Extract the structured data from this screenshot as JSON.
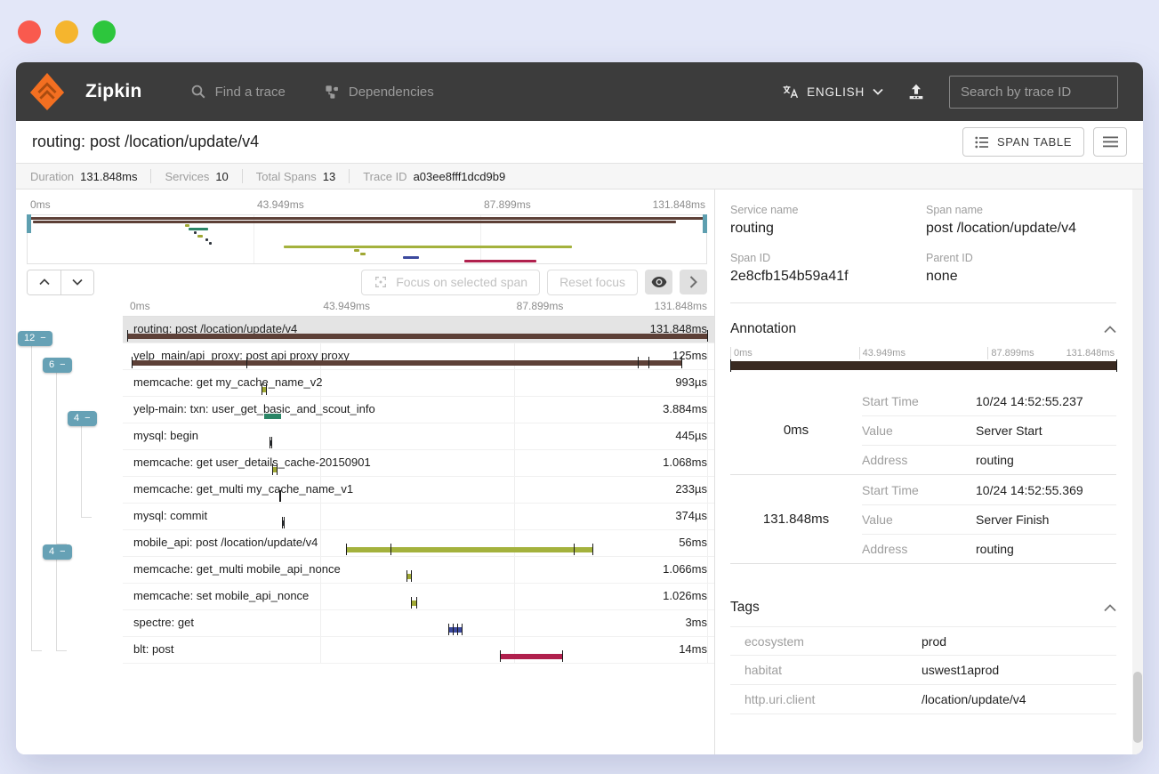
{
  "window_chrome": {
    "traffic_lights": [
      "#f95a4e",
      "#f5b52e",
      "#2dc63d"
    ]
  },
  "header": {
    "brand": "Zipkin",
    "nav": [
      {
        "label": "Find a trace"
      },
      {
        "label": "Dependencies"
      }
    ],
    "language": "ENGLISH",
    "search_placeholder": "Search by trace ID",
    "bg_color": "#3c3c3c"
  },
  "title_bar": {
    "title": "routing: post /location/update/v4",
    "span_table_label": "SPAN TABLE"
  },
  "stats": [
    {
      "label": "Duration",
      "value": "131.848ms"
    },
    {
      "label": "Services",
      "value": "10"
    },
    {
      "label": "Total Spans",
      "value": "13"
    },
    {
      "label": "Trace ID",
      "value": "a03ee8fff1dcd9b9"
    }
  ],
  "timeline": {
    "ticks": [
      "0ms",
      "43.949ms",
      "87.899ms",
      "131.848ms"
    ],
    "total_ms": 131.848,
    "controls": {
      "focus_label": "Focus on selected span",
      "reset_label": "Reset focus"
    },
    "spans": [
      {
        "label": "routing: post /location/update/v4",
        "duration": "131.848ms",
        "start_ms": 0,
        "duration_ms": 131.848,
        "color": "#5d4037",
        "selected": true,
        "ticks_ms": [
          0,
          131.848
        ]
      },
      {
        "label": "yelp_main/api_proxy: post api proxy proxy",
        "duration": "125ms",
        "start_ms": 1,
        "duration_ms": 125,
        "color": "#5d4037",
        "selected": false,
        "ticks_ms": [
          1,
          27,
          116,
          118.5,
          126
        ]
      },
      {
        "label": "memcache: get my_cache_name_v2",
        "duration": "993µs",
        "start_ms": 30.5,
        "duration_ms": 0.993,
        "color": "#a0a834",
        "selected": false,
        "ticks_ms": [
          30.5,
          31.49
        ]
      },
      {
        "label": "yelp-main: txn: user_get_basic_and_scout_info",
        "duration": "3.884ms",
        "start_ms": 31.2,
        "duration_ms": 3.884,
        "color": "#2b8566",
        "selected": false,
        "ticks_ms": []
      },
      {
        "label": "mysql: begin",
        "duration": "445µs",
        "start_ms": 32.3,
        "duration_ms": 0.445,
        "color": "#30363d",
        "selected": false,
        "ticks_ms": [
          32.3,
          32.75
        ]
      },
      {
        "label": "memcache: get user_details_cache-20150901",
        "duration": "1.068ms",
        "start_ms": 33.0,
        "duration_ms": 1.068,
        "color": "#a0a834",
        "selected": false,
        "ticks_ms": [
          33.0,
          34.07
        ]
      },
      {
        "label": "memcache: get_multi my_cache_name_v1",
        "duration": "233µs",
        "start_ms": 34.6,
        "duration_ms": 0.233,
        "color": "#30363d",
        "selected": false,
        "ticks_ms": [
          34.6,
          34.83
        ]
      },
      {
        "label": "mysql: commit",
        "duration": "374µs",
        "start_ms": 35.2,
        "duration_ms": 0.374,
        "color": "#30363d",
        "selected": false,
        "ticks_ms": [
          35.2,
          35.57
        ]
      },
      {
        "label": "mobile_api: post /location/update/v4",
        "duration": "56ms",
        "start_ms": 49.7,
        "duration_ms": 56,
        "color": "#a4b23d",
        "selected": false,
        "ticks_ms": [
          49.7,
          59.8,
          101.5,
          105.7
        ]
      },
      {
        "label": "memcache: get_multi mobile_api_nonce",
        "duration": "1.066ms",
        "start_ms": 63.4,
        "duration_ms": 1.066,
        "color": "#a0a834",
        "selected": false,
        "ticks_ms": [
          63.4,
          64.47
        ]
      },
      {
        "label": "memcache: set mobile_api_nonce",
        "duration": "1.026ms",
        "start_ms": 64.6,
        "duration_ms": 1.026,
        "color": "#a0a834",
        "selected": false,
        "ticks_ms": [
          64.6,
          65.63
        ]
      },
      {
        "label": "spectre: get",
        "duration": "3ms",
        "start_ms": 73.0,
        "duration_ms": 3,
        "color": "#3c4a9e",
        "selected": false,
        "ticks_ms": [
          73.0,
          74.0,
          75.0,
          76.0
        ]
      },
      {
        "label": "blt: post",
        "duration": "14ms",
        "start_ms": 84.8,
        "duration_ms": 14,
        "color": "#b0204d",
        "selected": false,
        "ticks_ms": [
          84.8,
          98.8
        ]
      }
    ],
    "badges": [
      {
        "label": "12",
        "row": 0,
        "indent": 0,
        "line_to_row": 12
      },
      {
        "label": "6",
        "row": 1,
        "indent": 1,
        "line_to_row": 8
      },
      {
        "label": "4",
        "row": 3,
        "indent": 2,
        "line_to_row": 7
      },
      {
        "label": "4",
        "row": 8,
        "indent": 1,
        "line_to_row": 12
      }
    ],
    "badge_color": "#66a1b5"
  },
  "detail": {
    "fields": [
      {
        "label": "Service name",
        "value": "routing"
      },
      {
        "label": "Span name",
        "value": "post /location/update/v4"
      },
      {
        "label": "Span ID",
        "value": "2e8cfb154b59a41f"
      },
      {
        "label": "Parent ID",
        "value": "none"
      }
    ],
    "annotation": {
      "title": "Annotation",
      "ticks": [
        "0ms",
        "43.949ms",
        "87.899ms",
        "131.848ms"
      ],
      "bar_color": "#392a21",
      "items": [
        {
          "time": "0ms",
          "rows": [
            {
              "label": "Start Time",
              "value": "10/24 14:52:55.237"
            },
            {
              "label": "Value",
              "value": "Server Start"
            },
            {
              "label": "Address",
              "value": "routing"
            }
          ]
        },
        {
          "time": "131.848ms",
          "rows": [
            {
              "label": "Start Time",
              "value": "10/24 14:52:55.369"
            },
            {
              "label": "Value",
              "value": "Server Finish"
            },
            {
              "label": "Address",
              "value": "routing"
            }
          ]
        }
      ]
    },
    "tags": {
      "title": "Tags",
      "rows": [
        {
          "key": "ecosystem",
          "value": "prod"
        },
        {
          "key": "habitat",
          "value": "uswest1aprod"
        },
        {
          "key": "http.uri.client",
          "value": "/location/update/v4"
        }
      ]
    }
  },
  "icons": {
    "search": "magnifier",
    "dependencies": "node-graph",
    "translate": "language",
    "chevron-down": "caret",
    "upload": "arrow-up-tray",
    "span-table": "list",
    "menu": "hamburger",
    "eye": "visibility",
    "focus": "crosshair",
    "chevron-up": "caret-up"
  }
}
